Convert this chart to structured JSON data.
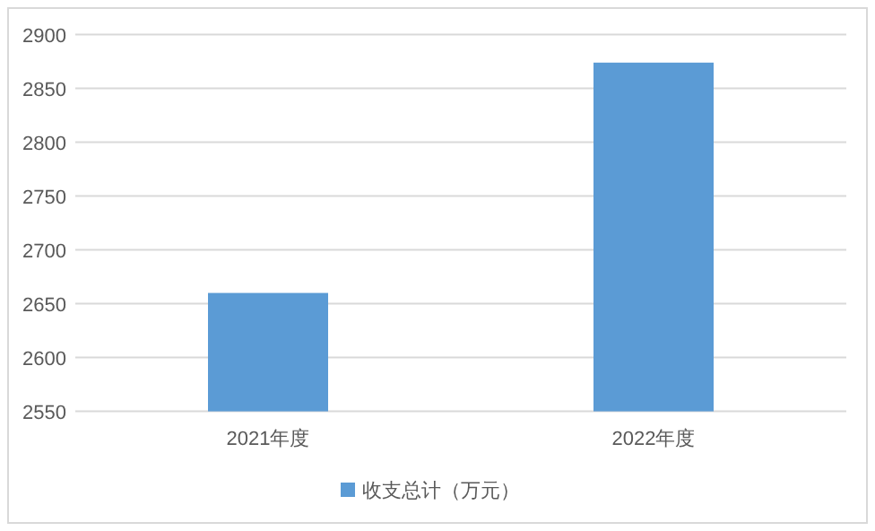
{
  "chart_data": {
    "type": "bar",
    "categories": [
      "2021年度",
      "2022年度"
    ],
    "series": [
      {
        "name": "收支总计（万元）",
        "color": "#5b9bd5",
        "values": [
          2660,
          2874
        ]
      }
    ],
    "ylim": [
      2550,
      2900
    ],
    "yticks": [
      2550,
      2600,
      2650,
      2700,
      2750,
      2800,
      2850,
      2900
    ],
    "grid": "y",
    "legend": "bottom"
  }
}
